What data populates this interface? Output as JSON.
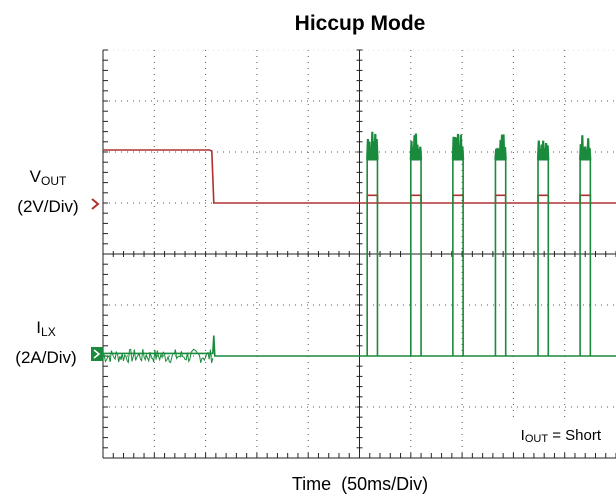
{
  "chart_data": {
    "type": "line",
    "title": "Hiccup Mode",
    "xlabel": "Time  (50ms/Div)",
    "grid": true,
    "grid_divisions": {
      "x": 10,
      "y": 8
    },
    "x_unit": "div",
    "xlim": [
      0,
      10
    ],
    "series": [
      {
        "name": "VOUT",
        "label_main": "V",
        "label_sub": "OUT",
        "scale": "(2V/Div)",
        "color": "#b03030",
        "reference_level_div": 5,
        "points": [
          [
            0,
            6.04
          ],
          [
            2.08,
            6.04
          ],
          [
            2.12,
            6.02
          ],
          [
            2.16,
            5.0
          ],
          [
            10.0,
            5.0
          ]
        ],
        "hiccup_pulses": {
          "start_times": [
            5.15,
            6.0,
            6.82,
            7.65,
            8.48,
            9.3
          ],
          "width": 0.2,
          "height": 0.15
        }
      },
      {
        "name": "ILX",
        "label_main": "I",
        "label_sub": "LX",
        "scale": "(2A/Div)",
        "color": "#1a8a3c",
        "reference_level_div": 2,
        "points": [
          [
            0,
            2.05
          ],
          [
            2.14,
            2.05
          ],
          [
            2.16,
            2.4
          ],
          [
            2.18,
            2.0
          ],
          [
            10.0,
            2.0
          ]
        ],
        "noise_band": {
          "from": 0.0,
          "to": 2.14,
          "amplitude": 0.14
        },
        "hiccup_pulses": {
          "start_times": [
            5.15,
            6.0,
            6.82,
            7.65,
            8.48,
            9.3
          ],
          "width": 0.2,
          "height": 3.85
        }
      }
    ],
    "annotation": {
      "main": "I",
      "sub": "OUT",
      "rest": " = Short"
    }
  }
}
